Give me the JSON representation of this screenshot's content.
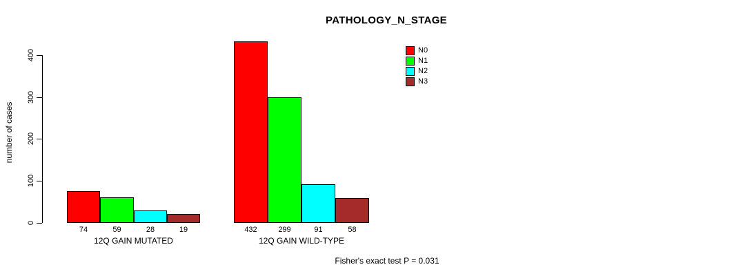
{
  "title": "PATHOLOGY_N_STAGE",
  "y_axis": {
    "label": "number of cases",
    "ticks": [
      "0",
      "100",
      "200",
      "300",
      "400"
    ]
  },
  "legend": {
    "items": [
      {
        "label": "N0",
        "color": "#FF0000"
      },
      {
        "label": "N1",
        "color": "#00FF00"
      },
      {
        "label": "N2",
        "color": "#00FFFF"
      },
      {
        "label": "N3",
        "color": "#A52A2A"
      }
    ]
  },
  "footer": "Fisher's exact test P = 0.031",
  "chart_data": {
    "type": "bar",
    "title": "PATHOLOGY_N_STAGE",
    "xlabel": "",
    "ylabel": "number of cases",
    "ylim": [
      0,
      440
    ],
    "yticks": [
      0,
      100,
      200,
      300,
      400
    ],
    "grid": false,
    "legend_position": "top-right",
    "categories": [
      "12Q GAIN MUTATED",
      "12Q GAIN WILD-TYPE"
    ],
    "series": [
      {
        "name": "N0",
        "color": "#FF0000",
        "values": [
          74,
          432
        ]
      },
      {
        "name": "N1",
        "color": "#00FF00",
        "values": [
          59,
          299
        ]
      },
      {
        "name": "N2",
        "color": "#00FFFF",
        "values": [
          28,
          91
        ]
      },
      {
        "name": "N3",
        "color": "#A52A2A",
        "values": [
          19,
          58
        ]
      }
    ],
    "bar_value_labels": [
      [
        74,
        59,
        28,
        19
      ],
      [
        432,
        299,
        91,
        58
      ]
    ],
    "annotation": "Fisher's exact test P = 0.031"
  }
}
